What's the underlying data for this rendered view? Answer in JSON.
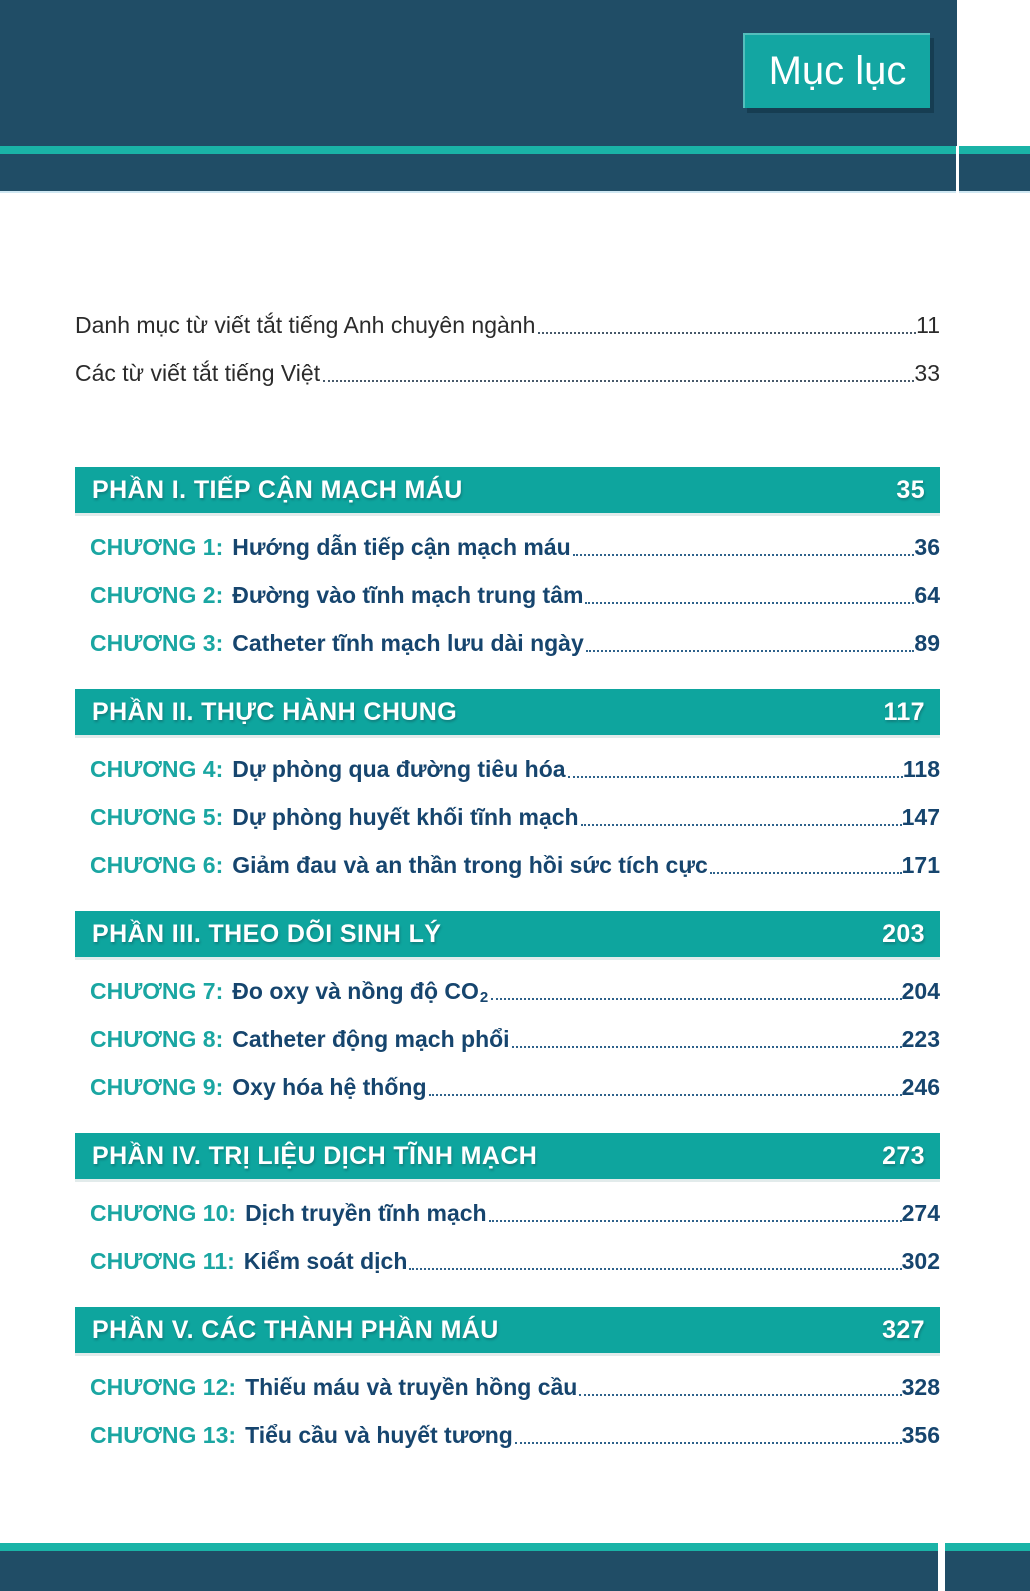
{
  "header": {
    "tab_label": "Mục lục"
  },
  "intro_items": [
    {
      "label": "Danh mục từ viết tắt tiếng Anh chuyên ngành",
      "page": "11"
    },
    {
      "label": "Các từ viết tắt tiếng Việt",
      "page": "33"
    }
  ],
  "sections": [
    {
      "title": "PHẦN I. TIẾP CẬN MẠCH MÁU",
      "page": "35",
      "chapters": [
        {
          "label": "CHƯƠNG 1:",
          "title": "Hướng dẫn tiếp cận mạch máu",
          "page": "36"
        },
        {
          "label": "CHƯƠNG 2:",
          "title": "Đường vào tĩnh mạch trung tâm",
          "page": "64"
        },
        {
          "label": "CHƯƠNG 3:",
          "title": "Catheter tĩnh mạch lưu dài ngày",
          "page": "89"
        }
      ]
    },
    {
      "title": "PHẦN II. THỰC HÀNH CHUNG",
      "page": "117",
      "chapters": [
        {
          "label": "CHƯƠNG 4:",
          "title": "Dự phòng qua đường tiêu hóa",
          "page": "118"
        },
        {
          "label": "CHƯƠNG 5:",
          "title": "Dự phòng huyết khối tĩnh mạch",
          "page": "147"
        },
        {
          "label": "CHƯƠNG 6:",
          "title": "Giảm đau và an thần trong hồi sức tích cực",
          "page": "171"
        }
      ]
    },
    {
      "title": "PHẦN III. THEO DÕI SINH LÝ",
      "page": "203",
      "chapters": [
        {
          "label": "CHƯƠNG 7:",
          "title": "Đo oxy và nồng độ CO",
          "title_sub": "2",
          "page": "204"
        },
        {
          "label": "CHƯƠNG 8:",
          "title": "Catheter động mạch phổi",
          "page": "223"
        },
        {
          "label": "CHƯƠNG 9:",
          "title": "Oxy hóa hệ thống",
          "page": "246"
        }
      ]
    },
    {
      "title": "PHẦN IV. TRỊ LIỆU DỊCH TĨNH MẠCH",
      "page": "273",
      "chapters": [
        {
          "label": "CHƯƠNG 10:",
          "title": "Dịch truyền tĩnh mạch",
          "page": "274"
        },
        {
          "label": "CHƯƠNG 11:",
          "title": "Kiểm soát dịch",
          "page": "302"
        }
      ]
    },
    {
      "title": "PHẦN V. CÁC THÀNH PHẦN MÁU",
      "page": "327",
      "chapters": [
        {
          "label": "CHƯƠNG 12:",
          "title": "Thiếu máu và truyền hồng cầu",
          "page": "328"
        },
        {
          "label": "CHƯƠNG 13:",
          "title": "Tiểu cầu và huyết tương",
          "page": "356"
        }
      ]
    }
  ],
  "colors": {
    "navy_band": "#204d66",
    "teal_bar": "#0ea59e",
    "teal_stripe": "#1ab3a7",
    "chapter_teal": "#1aa6a2",
    "chapter_navy": "#16456e"
  }
}
